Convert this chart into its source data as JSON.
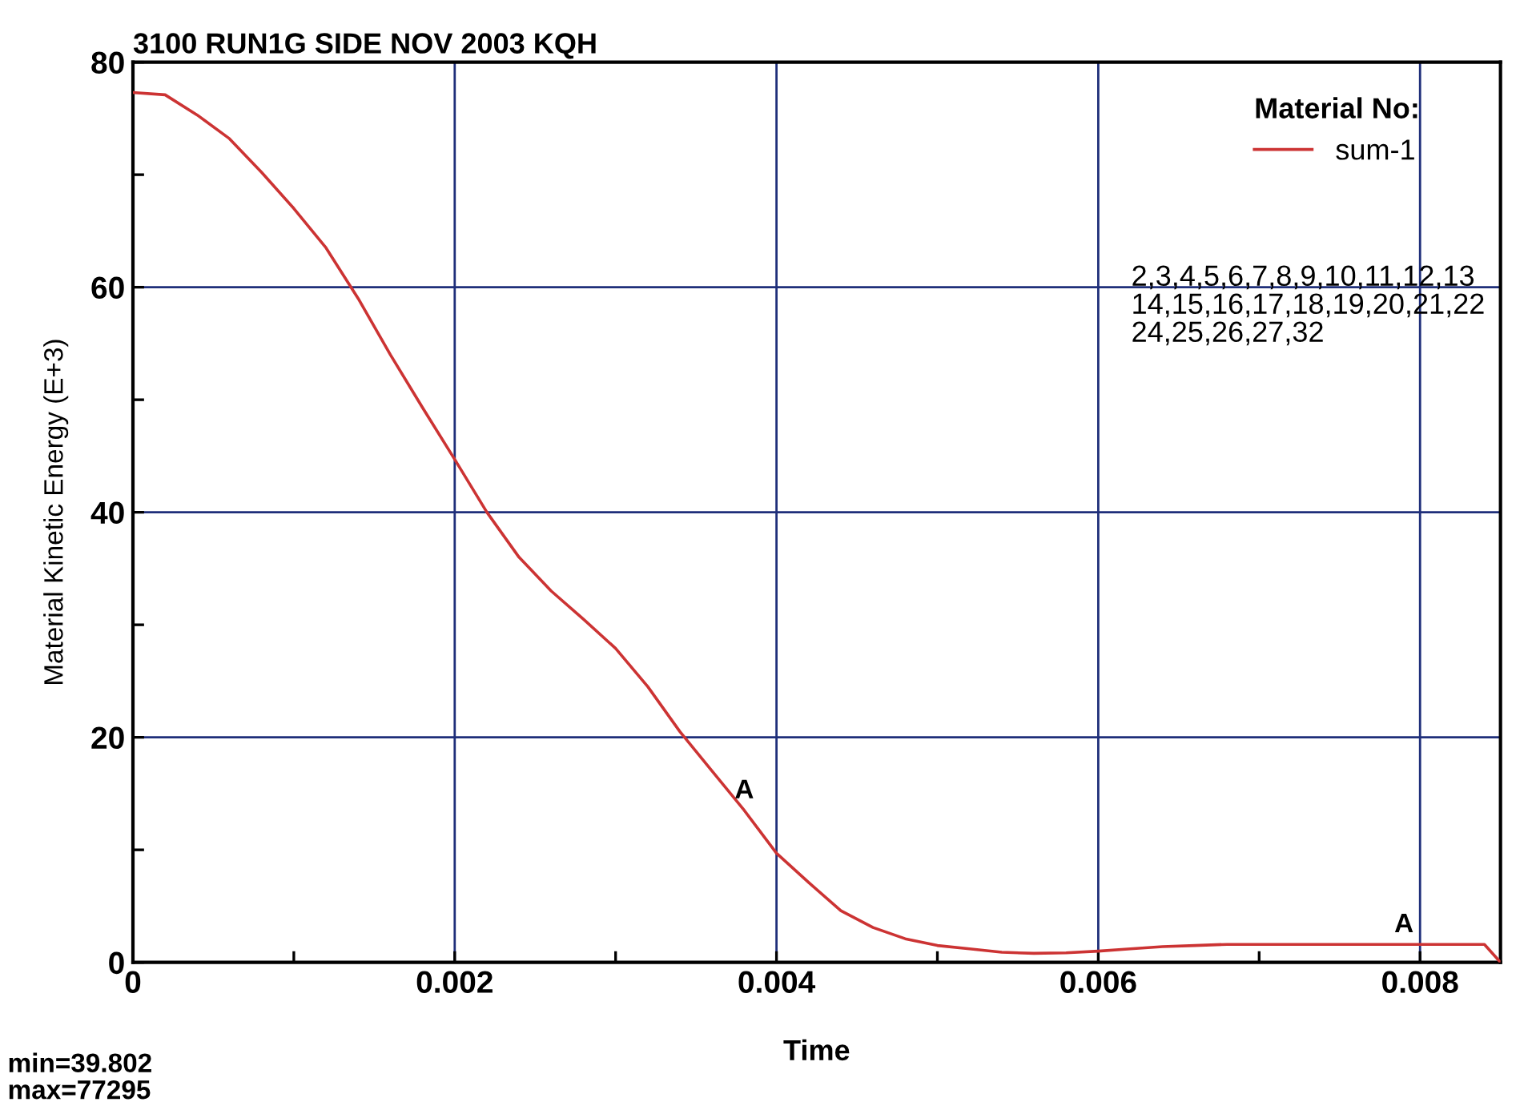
{
  "chart_data": {
    "type": "line",
    "title": "3100 RUN1G SIDE NOV 2003 KQH",
    "xlabel": "Time",
    "ylabel": "Material Kinetic Energy (E+3)",
    "legend_title": "Material No:",
    "series": [
      {
        "name": "sum-1",
        "color": "#cc3333",
        "x": [
          0,
          0.0002,
          0.0004,
          0.0006,
          0.0008,
          0.001,
          0.0012,
          0.0014,
          0.0016,
          0.0018,
          0.002,
          0.0022,
          0.0024,
          0.0026,
          0.0028,
          0.003,
          0.0032,
          0.0034,
          0.0036,
          0.0038,
          0.004,
          0.0042,
          0.0044,
          0.0046,
          0.0048,
          0.005,
          0.0052,
          0.0054,
          0.0056,
          0.0058,
          0.006,
          0.0062,
          0.0064,
          0.0066,
          0.0068,
          0.007,
          0.0075,
          0.008,
          0.0084,
          0.0085
        ],
        "values": [
          77.3,
          77.1,
          75.3,
          73.2,
          70.2,
          67.0,
          63.5,
          59.0,
          54.0,
          49.3,
          44.7,
          40.0,
          36.0,
          33.0,
          30.5,
          27.9,
          24.5,
          20.5,
          17.0,
          13.5,
          9.7,
          7.1,
          4.6,
          3.1,
          2.1,
          1.5,
          1.2,
          0.9,
          0.8,
          0.85,
          1.0,
          1.2,
          1.4,
          1.5,
          1.6,
          1.6,
          1.6,
          1.6,
          1.6,
          0
        ]
      }
    ],
    "xlim": [
      0,
      0.0085
    ],
    "ylim": [
      0,
      80
    ],
    "xticks": [
      0,
      {
        "value": 0.001,
        "label": null
      },
      0.002,
      {
        "value": 0.003,
        "label": null
      },
      0.004,
      {
        "value": 0.005,
        "label": null
      },
      0.006,
      {
        "value": 0.007,
        "label": null
      },
      0.008
    ],
    "yticks": [
      0,
      {
        "value": 10,
        "label": null
      },
      20,
      {
        "value": 30,
        "label": null
      },
      40,
      {
        "value": 50,
        "label": null
      },
      60,
      {
        "value": 70,
        "label": null
      },
      80
    ],
    "grid": true,
    "legend": "top right",
    "annotations": [
      {
        "text": "A",
        "x": 0.0038,
        "y": 13.5
      },
      {
        "text": "A",
        "x": 0.0079,
        "y": 1.6
      },
      "2,3,4,5,6,7,8,9,10,11,12,13\n14,15,16,17,18,19,20,21,22\n24,25,26,27,32",
      "min=39.802\nmax=77295"
    ]
  }
}
